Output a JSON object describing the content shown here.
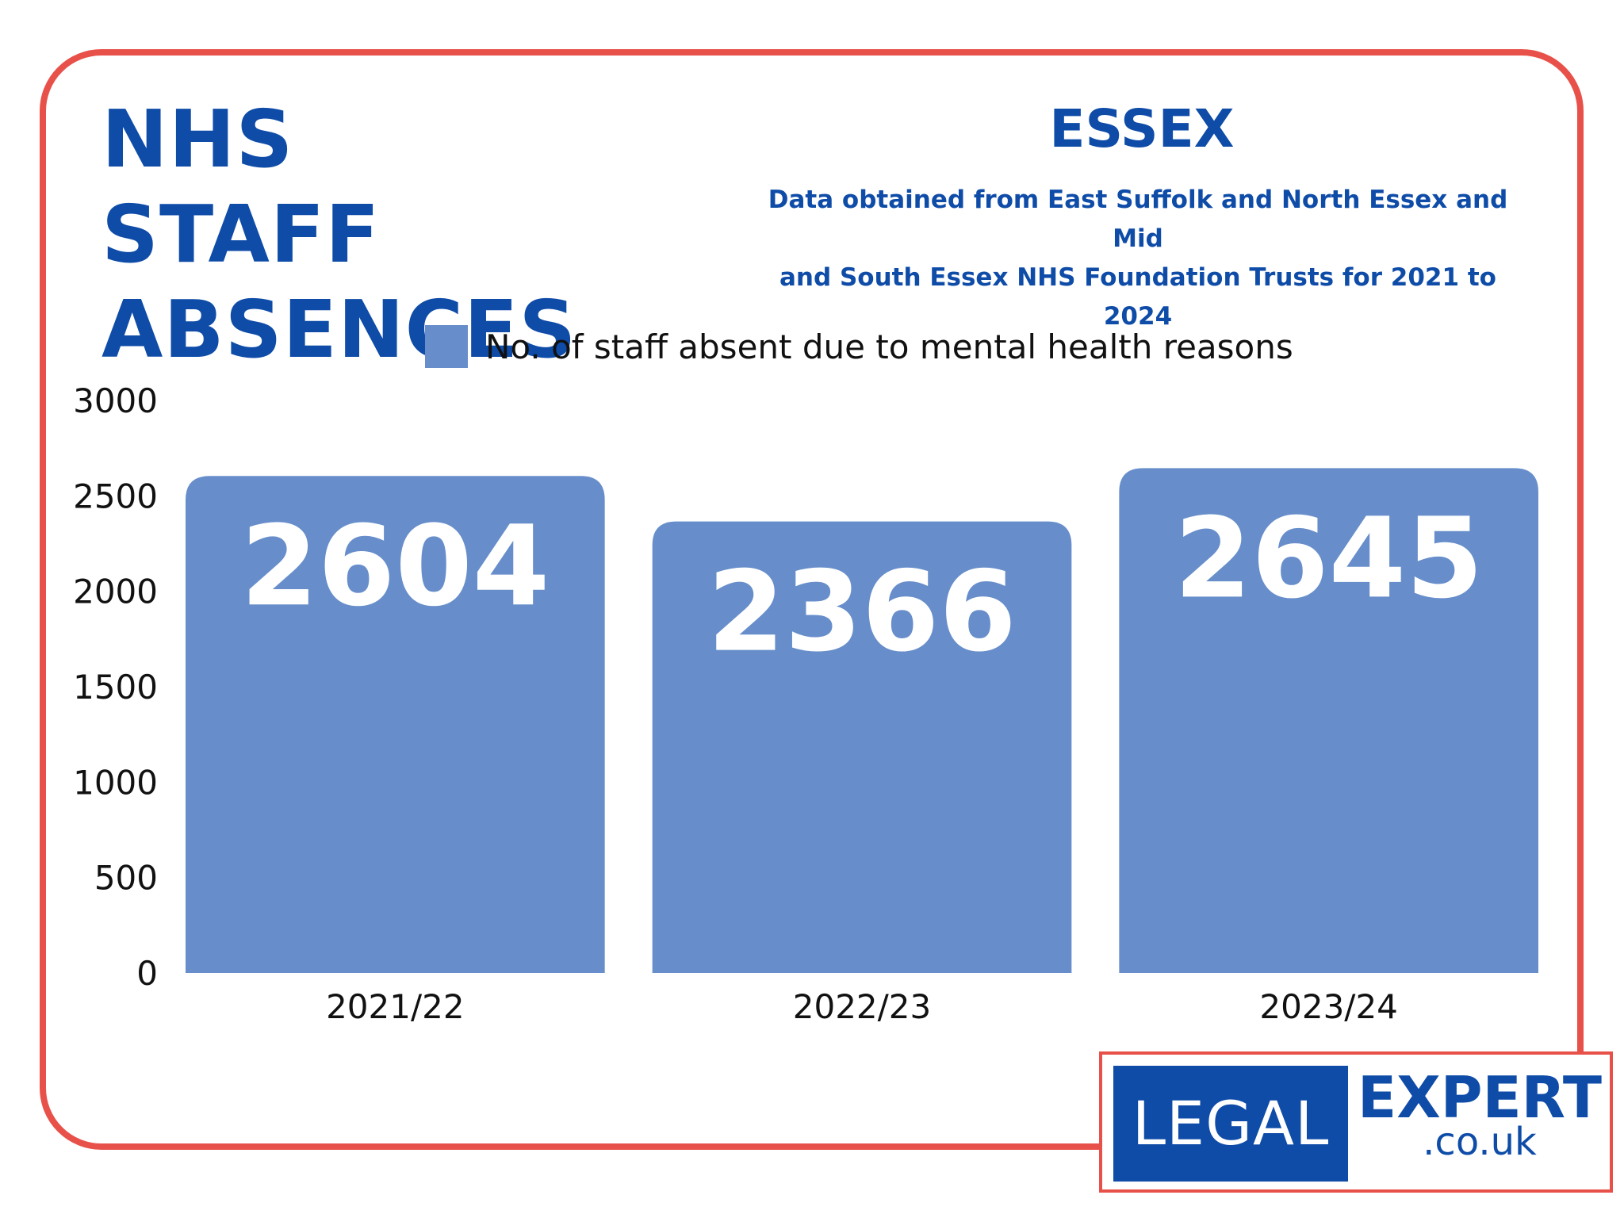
{
  "header": {
    "title_line1": "NHS STAFF",
    "title_line2": "ABSENCES",
    "region": "ESSEX",
    "subtitle_line1": "Data obtained from East Suffolk and North Essex and Mid",
    "subtitle_line2": "and South Essex NHS Foundation Trusts for 2021 to 2024"
  },
  "colors": {
    "bar": "#678ecb",
    "title": "#0e4ca8",
    "frame": "#e8514a"
  },
  "chart_data": {
    "type": "bar",
    "categories": [
      "2021/22",
      "2022/23",
      "2023/24"
    ],
    "series": [
      {
        "name": "No. of staff absent due to mental health reasons",
        "values": [
          2604,
          2366,
          2645
        ]
      }
    ],
    "data_labels": [
      "2604",
      "2366",
      "2645"
    ],
    "ylim": [
      0,
      3000
    ],
    "yticks": [
      0,
      500,
      1000,
      1500,
      2000,
      2500,
      3000
    ],
    "ytick_labels": [
      "0",
      "500",
      "1000",
      "1500",
      "2000",
      "2500",
      "3000"
    ],
    "grid": false,
    "legend_position": "top-center"
  },
  "logo": {
    "left_text": "LEGAL",
    "right_text": "EXPERT",
    "domain_text": ".co.uk"
  }
}
